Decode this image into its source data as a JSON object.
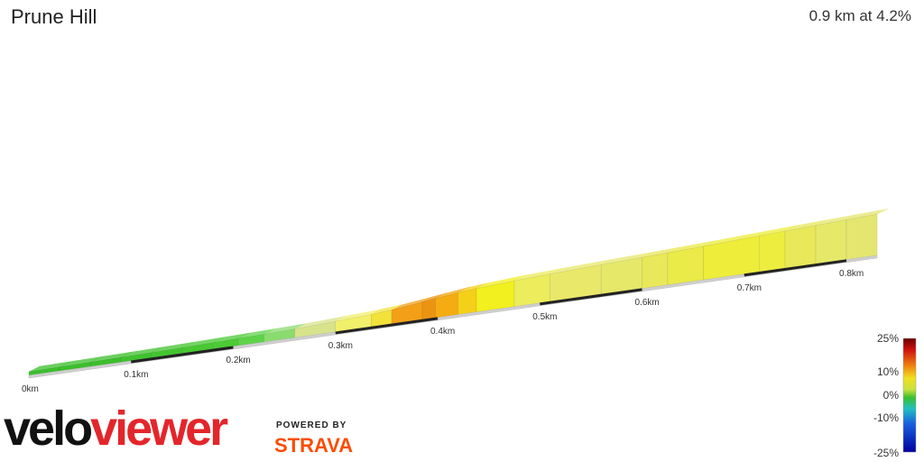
{
  "header": {
    "title": "Prune Hill",
    "summary": "0.9 km at 4.2%"
  },
  "branding": {
    "logo_part1": "velo",
    "logo_part2": "viewer",
    "powered_by": "POWERED BY",
    "strava": "STRAVA"
  },
  "chart_data": {
    "type": "area",
    "title": "Prune Hill",
    "x_unit": "km",
    "x_ticks": [
      "0km",
      "0.1km",
      "0.2km",
      "0.3km",
      "0.4km",
      "0.5km",
      "0.6km",
      "0.7km",
      "0.8km"
    ],
    "x_tick_values": [
      0,
      0.1,
      0.2,
      0.3,
      0.4,
      0.5,
      0.6,
      0.7,
      0.8
    ],
    "segments": [
      {
        "x0": 0.0,
        "x1": 0.03,
        "grade": 1.5,
        "color": "#3cbf2c"
      },
      {
        "x0": 0.03,
        "x1": 0.06,
        "grade": 1.5,
        "color": "#3cbf2c"
      },
      {
        "x0": 0.06,
        "x1": 0.09,
        "grade": 1.6,
        "color": "#3cbf2c"
      },
      {
        "x0": 0.09,
        "x1": 0.12,
        "grade": 1.8,
        "color": "#40c22e"
      },
      {
        "x0": 0.12,
        "x1": 0.15,
        "grade": 2.0,
        "color": "#44c530"
      },
      {
        "x0": 0.15,
        "x1": 0.18,
        "grade": 2.2,
        "color": "#48c832"
      },
      {
        "x0": 0.18,
        "x1": 0.205,
        "grade": 2.4,
        "color": "#4ccb34"
      },
      {
        "x0": 0.205,
        "x1": 0.23,
        "grade": 2.6,
        "color": "#5ed34a"
      },
      {
        "x0": 0.23,
        "x1": 0.26,
        "grade": 3.0,
        "color": "#8adc6e"
      },
      {
        "x0": 0.26,
        "x1": 0.3,
        "grade": 5.0,
        "color": "#d8e48c"
      },
      {
        "x0": 0.3,
        "x1": 0.335,
        "grade": 5.6,
        "color": "#f2f06a"
      },
      {
        "x0": 0.335,
        "x1": 0.355,
        "grade": 8.0,
        "color": "#f2e23a"
      },
      {
        "x0": 0.355,
        "x1": 0.385,
        "grade": 13.0,
        "color": "#f3a018"
      },
      {
        "x0": 0.385,
        "x1": 0.398,
        "grade": 14.0,
        "color": "#ec9412"
      },
      {
        "x0": 0.398,
        "x1": 0.42,
        "grade": 12.5,
        "color": "#f4ac10"
      },
      {
        "x0": 0.42,
        "x1": 0.438,
        "grade": 9.0,
        "color": "#f5d018"
      },
      {
        "x0": 0.438,
        "x1": 0.475,
        "grade": 7.0,
        "color": "#f2f01e"
      },
      {
        "x0": 0.475,
        "x1": 0.51,
        "grade": 5.0,
        "color": "#ecec5c"
      },
      {
        "x0": 0.51,
        "x1": 0.56,
        "grade": 4.2,
        "color": "#e9e86a"
      },
      {
        "x0": 0.56,
        "x1": 0.6,
        "grade": 4.0,
        "color": "#e6e86a"
      },
      {
        "x0": 0.6,
        "x1": 0.625,
        "grade": 4.2,
        "color": "#e9e85a"
      },
      {
        "x0": 0.625,
        "x1": 0.66,
        "grade": 4.4,
        "color": "#eaea48"
      },
      {
        "x0": 0.66,
        "x1": 0.715,
        "grade": 5.0,
        "color": "#eded3a"
      },
      {
        "x0": 0.715,
        "x1": 0.74,
        "grade": 4.8,
        "color": "#eded40"
      },
      {
        "x0": 0.74,
        "x1": 0.77,
        "grade": 4.5,
        "color": "#e9e85a"
      },
      {
        "x0": 0.77,
        "x1": 0.8,
        "grade": 4.5,
        "color": "#e6e86a"
      },
      {
        "x0": 0.8,
        "x1": 0.83,
        "grade": 4.5,
        "color": "#e4e670"
      }
    ],
    "legend": {
      "labels": [
        "25%",
        "10%",
        "0%",
        "-10%",
        "-25%"
      ],
      "stops": [
        {
          "offset": 0.0,
          "color": "#6a0000"
        },
        {
          "offset": 0.1,
          "color": "#d01010"
        },
        {
          "offset": 0.25,
          "color": "#f08a10"
        },
        {
          "offset": 0.35,
          "color": "#f0e020"
        },
        {
          "offset": 0.45,
          "color": "#c8e040"
        },
        {
          "offset": 0.52,
          "color": "#3cbf2c"
        },
        {
          "offset": 0.62,
          "color": "#20c0c0"
        },
        {
          "offset": 0.75,
          "color": "#1860e0"
        },
        {
          "offset": 1.0,
          "color": "#0000a0"
        }
      ]
    }
  }
}
